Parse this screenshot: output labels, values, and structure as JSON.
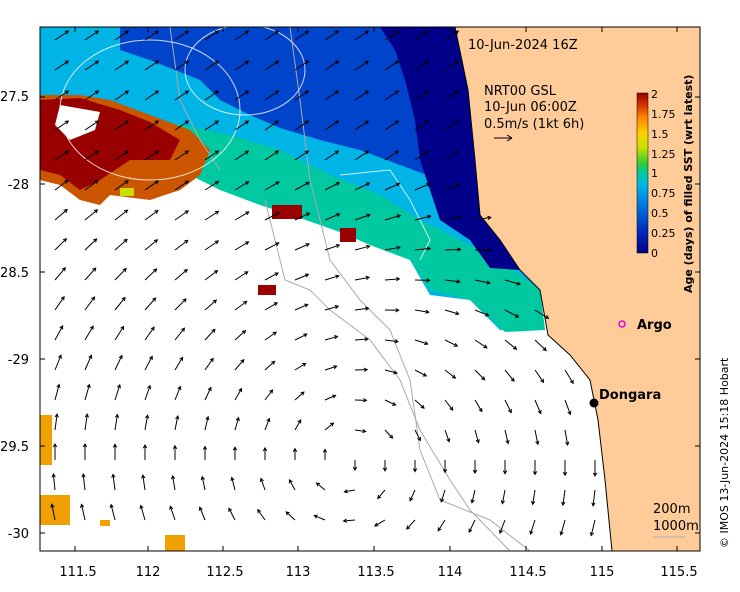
{
  "map": {
    "date_title": "10-Jun-2024 16Z",
    "product_line1": "NRT00 GSL",
    "product_line2": "10-Jun 06:00Z",
    "scale_label": "0.5m/s (1kt 6h)",
    "lon_ticks": [
      "111.5",
      "112",
      "112.5",
      "113",
      "113.5",
      "114",
      "114.5",
      "115",
      "115.5"
    ],
    "lat_ticks": [
      "-27.5",
      "-28",
      "-28.5",
      "-29",
      "-29.5",
      "-30"
    ],
    "places": [
      {
        "name": "Argo",
        "marker": "open-circle",
        "color": "#e000e0"
      },
      {
        "name": "Dongara",
        "marker": "filled-dot",
        "color": "#000000"
      }
    ],
    "depth_legend": [
      "200m",
      "1000m"
    ],
    "colorbar": {
      "label": "Age (days) of filled SST (wrt latest)",
      "ticks": [
        "0",
        "0.25",
        "0.5",
        "0.75",
        "1",
        "1.25",
        "1.5",
        "1.75",
        "2"
      ],
      "min": 0,
      "max": 2
    },
    "credit": "© IMOS 13-Jun-2024 15:18 Hobart",
    "colors": {
      "land": "#ffcc99",
      "age_0": "#00008b",
      "age_0_25": "#0044cc",
      "age_0_5": "#00b4e6",
      "age_0_75": "#00c8a0",
      "age_1": "#33cc33",
      "age_1_5": "#ffe020",
      "age_1_75": "#cc5500",
      "age_2": "#990000",
      "orange_patch": "#f0a000"
    }
  }
}
